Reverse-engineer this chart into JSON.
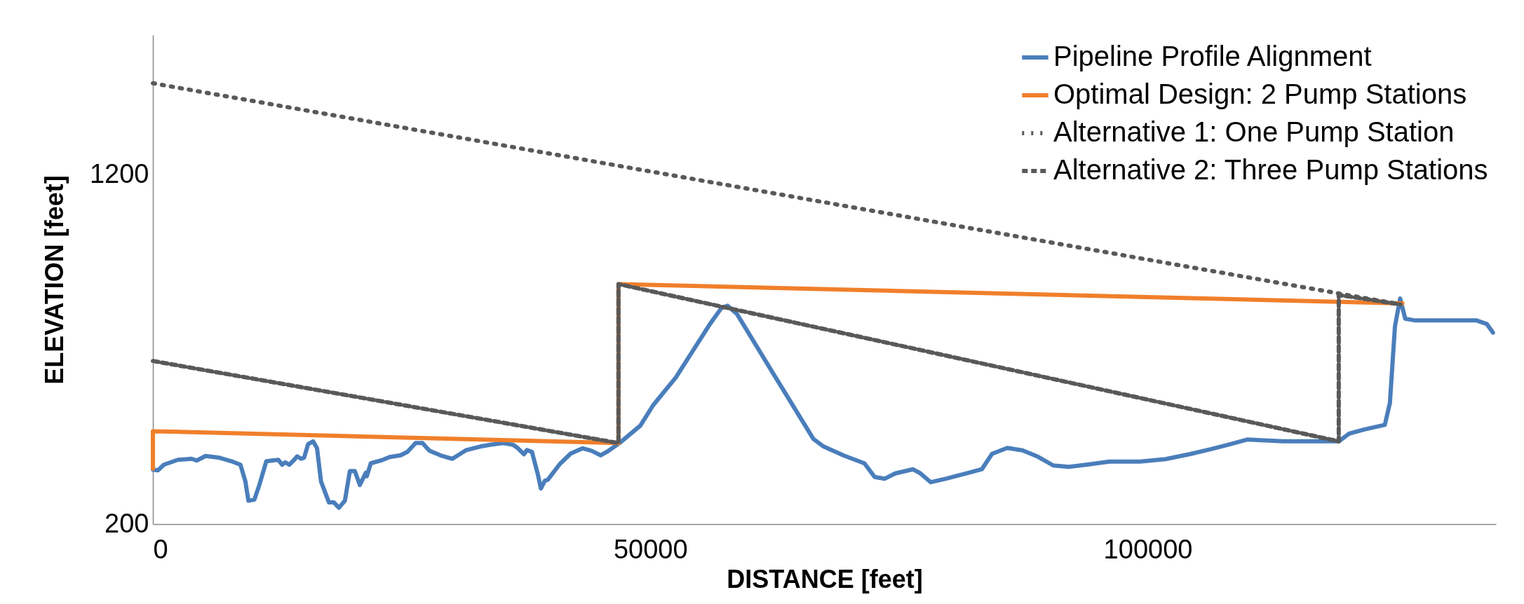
{
  "chart_data": {
    "type": "line",
    "xlabel": "DISTANCE [feet]",
    "ylabel": "ELEVATION [feet]",
    "xlim": [
      0,
      135000
    ],
    "ylim": [
      200,
      1600
    ],
    "xticks": [
      0,
      50000,
      100000
    ],
    "yticks": [
      200,
      1200
    ],
    "grid": false,
    "legend": "top right",
    "marker": "none",
    "series": [
      {
        "name": "Pipeline Profile Alignment",
        "color": "#4a7ebb",
        "line_style": "solid",
        "x": [
          0,
          500,
          1100,
          2500,
          3900,
          4400,
          5300,
          6700,
          7900,
          8800,
          9300,
          9600,
          10200,
          10700,
          11400,
          12600,
          13000,
          13300,
          13700,
          14200,
          14500,
          14900,
          15200,
          15600,
          16100,
          16500,
          16900,
          17700,
          18200,
          18700,
          19300,
          19800,
          20300,
          20800,
          21400,
          21500,
          21900,
          23100,
          23800,
          24900,
          25600,
          26400,
          27100,
          27800,
          28900,
          30100,
          31500,
          32900,
          33900,
          35200,
          36200,
          36700,
          37300,
          37600,
          38100,
          38700,
          39000,
          39400,
          39700,
          40900,
          42000,
          43200,
          44100,
          45000,
          45800,
          46900,
          49000,
          50300,
          52570,
          55930,
          57130,
          57760,
          58700,
          62290,
          66390,
          67420,
          69470,
          71520,
          72550,
          73570,
          74600,
          76390,
          77160,
          78190,
          79730,
          82290,
          83320,
          84340,
          85880,
          87420,
          88960,
          90500,
          92030,
          94080,
          96140,
          99210,
          101780,
          104340,
          106390,
          108440,
          109980,
          113570,
          119210,
          120240,
          121780,
          123830,
          124340,
          124850,
          125370,
          125880,
          126900,
          133060,
          134080,
          134700
        ],
        "values": [
          356,
          354,
          370,
          384,
          387,
          382,
          395,
          390,
          380,
          370,
          322,
          267,
          270,
          312,
          380,
          384,
          370,
          377,
          370,
          384,
          394,
          387,
          390,
          429,
          437,
          417,
          322,
          262,
          262,
          247,
          267,
          352,
          352,
          312,
          347,
          337,
          374,
          384,
          392,
          397,
          407,
          432,
          432,
          410,
          397,
          387,
          412,
          422,
          427,
          432,
          427,
          417,
          400,
          412,
          407,
          342,
          302,
          324,
          327,
          372,
          402,
          417,
          410,
          397,
          410,
          432,
          482,
          541,
          620,
          770,
          818,
          825,
          802,
          634,
          444,
          422,
          396,
          374,
          335,
          330,
          345,
          357,
          345,
          320,
          330,
          349,
          357,
          401,
          418,
          411,
          393,
          368,
          364,
          371,
          379,
          379,
          386,
          401,
          415,
          430,
          442,
          437,
          437,
          459,
          471,
          484,
          547,
          766,
          846,
          788,
          783,
          783,
          773,
          748
        ]
      },
      {
        "name": "Optimal Design: 2 Pump Stations",
        "color": "#f07f2a",
        "line_style": "solid",
        "x": [
          0,
          0,
          46800,
          46800,
          125600
        ],
        "values": [
          359,
          466,
          432,
          887,
          832
        ]
      },
      {
        "name": "Alternative 1: One Pump Station",
        "color": "#595959",
        "line_style": "dotted",
        "x": [
          0,
          125400
        ],
        "values": [
          1462,
          829
        ]
      },
      {
        "name": "Alternative 2: Three Pump Stations",
        "color": "#595959",
        "line_style": "dashed",
        "x": [
          0,
          46800,
          46800,
          119200,
          119200,
          125400
        ],
        "values": [
          667,
          432,
          887,
          437,
          856,
          829
        ]
      }
    ]
  }
}
